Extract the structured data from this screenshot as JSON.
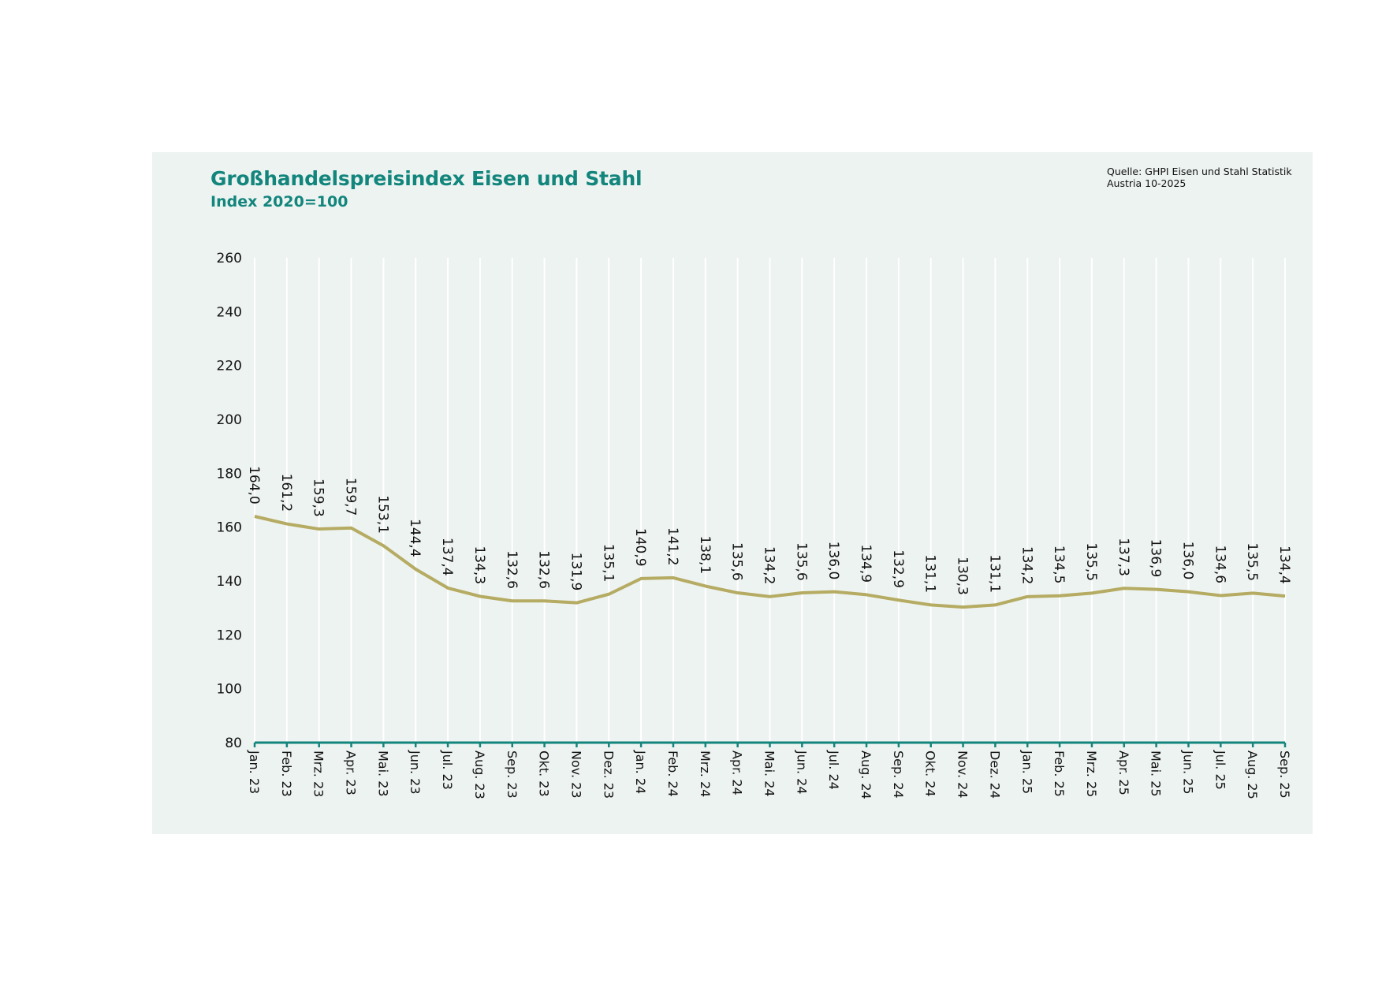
{
  "colors": {
    "panel_bg": "#edf3f1",
    "title": "#12857c",
    "line": "#b5ab62",
    "axis": "#12857c",
    "grid": "#ffffff",
    "text": "#111111"
  },
  "chart_data": {
    "type": "line",
    "title": "Großhandelspreisindex Eisen und Stahl",
    "subtitle": "Index 2020=100",
    "source": [
      "Quelle: GHPI Eisen und Stahl Statistik",
      "Austria 10-2025"
    ],
    "xlabel": "",
    "ylabel": "",
    "ylim": [
      80,
      260
    ],
    "yticks": [
      80,
      100,
      120,
      140,
      160,
      180,
      200,
      220,
      240,
      260
    ],
    "grid": "vertical",
    "legend": "none",
    "categories": [
      "Jan. 23",
      "Feb. 23",
      "Mrz. 23",
      "Apr. 23",
      "Mai. 23",
      "Jun. 23",
      "Jul. 23",
      "Aug. 23",
      "Sep. 23",
      "Okt. 23",
      "Nov. 23",
      "Dez. 23",
      "Jan. 24",
      "Feb. 24",
      "Mrz. 24",
      "Apr. 24",
      "Mai. 24",
      "Jun. 24",
      "Jul. 24",
      "Aug. 24",
      "Sep. 24",
      "Okt. 24",
      "Nov. 24",
      "Dez. 24",
      "Jan. 25",
      "Feb. 25",
      "Mrz. 25",
      "Apr. 25",
      "Mai. 25",
      "Jun. 25",
      "Jul. 25",
      "Aug. 25",
      "Sep. 25"
    ],
    "series": [
      {
        "name": "GHPI Eisen und Stahl",
        "values": [
          164.0,
          161.2,
          159.3,
          159.7,
          153.1,
          144.4,
          137.4,
          134.3,
          132.6,
          132.6,
          131.9,
          135.1,
          140.9,
          141.2,
          138.1,
          135.6,
          134.2,
          135.6,
          136.0,
          134.9,
          132.9,
          131.1,
          130.3,
          131.1,
          134.2,
          134.5,
          135.5,
          137.3,
          136.9,
          136.0,
          134.6,
          135.5,
          134.4
        ],
        "labels": [
          "164,0",
          "161,2",
          "159,3",
          "159,7",
          "153,1",
          "144,4",
          "137,4",
          "134,3",
          "132,6",
          "132,6",
          "131,9",
          "135,1",
          "140,9",
          "141,2",
          "138,1",
          "135,6",
          "134,2",
          "135,6",
          "136,0",
          "134,9",
          "132,9",
          "131,1",
          "130,3",
          "131,1",
          "134,2",
          "134,5",
          "135,5",
          "137,3",
          "136,9",
          "136,0",
          "134,6",
          "135,5",
          "134,4"
        ]
      }
    ]
  }
}
